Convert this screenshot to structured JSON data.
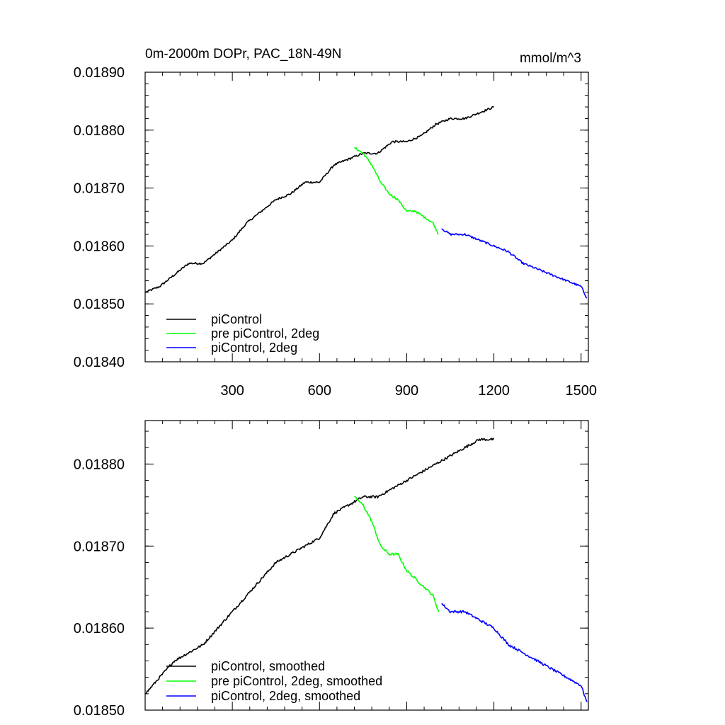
{
  "chart_data": [
    {
      "type": "line",
      "title": "0m-2000m DOPr, PAC_18N-49N",
      "units": "mmol/m^3",
      "xlabel": "",
      "ylabel": "",
      "xlim": [
        0,
        1525
      ],
      "ylim": [
        0.0184,
        0.0189
      ],
      "xticks": [
        300,
        600,
        900,
        1200,
        1500
      ],
      "xtick_labels": [
        "300",
        "600",
        "900",
        "1200",
        "1500"
      ],
      "yticks": [
        0.0184,
        0.0185,
        0.0186,
        0.0187,
        0.0188,
        0.0189
      ],
      "ytick_labels": [
        "0.01840",
        "0.01850",
        "0.01860",
        "0.01870",
        "0.01880",
        "0.01890"
      ],
      "legend_position": "bottom-left",
      "series": [
        {
          "name": "piControl",
          "color": "#000000",
          "x": [
            1,
            50,
            100,
            150,
            200,
            250,
            300,
            350,
            400,
            450,
            500,
            550,
            600,
            650,
            700,
            750,
            800,
            850,
            900,
            950,
            1000,
            1050,
            1100,
            1150,
            1200
          ],
          "y": [
            0.01852,
            0.01853,
            0.01855,
            0.01857,
            0.01857,
            0.01859,
            0.01861,
            0.01864,
            0.01866,
            0.01868,
            0.01869,
            0.01871,
            0.01871,
            0.01874,
            0.01875,
            0.01876,
            0.01876,
            0.01878,
            0.01878,
            0.01879,
            0.01881,
            0.01882,
            0.01882,
            0.01883,
            0.01884
          ]
        },
        {
          "name": "pre piControl, 2deg",
          "color": "#00ff00",
          "x": [
            720,
            750,
            780,
            810,
            840,
            870,
            900,
            930,
            960,
            990,
            1010
          ],
          "y": [
            0.01877,
            0.01876,
            0.01874,
            0.01871,
            0.01869,
            0.01868,
            0.01866,
            0.01866,
            0.01865,
            0.01864,
            0.01862
          ]
        },
        {
          "name": "piControl, 2deg",
          "color": "#0000ff",
          "x": [
            1020,
            1050,
            1100,
            1150,
            1200,
            1250,
            1300,
            1350,
            1400,
            1450,
            1500,
            1520
          ],
          "y": [
            0.01863,
            0.01862,
            0.01862,
            0.01861,
            0.0186,
            0.01859,
            0.01857,
            0.01856,
            0.01855,
            0.01854,
            0.01853,
            0.01851
          ]
        }
      ]
    },
    {
      "type": "line",
      "title": "",
      "xlabel": "",
      "ylabel": "",
      "xlim": [
        0,
        1525
      ],
      "ylim": [
        0.0185,
        0.018853
      ],
      "xticks": [
        300,
        600,
        900,
        1200,
        1500
      ],
      "xtick_labels": [],
      "yticks": [
        0.0185,
        0.0186,
        0.0187,
        0.0188
      ],
      "ytick_labels": [
        "0.01850",
        "0.01860",
        "0.01870",
        "0.01880"
      ],
      "legend_position": "bottom-left",
      "series": [
        {
          "name": "piControl, smoothed",
          "color": "#000000",
          "x": [
            1,
            50,
            100,
            150,
            200,
            250,
            300,
            350,
            400,
            450,
            500,
            550,
            600,
            650,
            700,
            750,
            800,
            850,
            900,
            950,
            1000,
            1050,
            1100,
            1150,
            1200
          ],
          "y": [
            0.01852,
            0.01854,
            0.01856,
            0.01857,
            0.01858,
            0.0186,
            0.01862,
            0.01864,
            0.01866,
            0.01868,
            0.01869,
            0.0187,
            0.01871,
            0.01874,
            0.01875,
            0.01876,
            0.01876,
            0.01877,
            0.01878,
            0.01879,
            0.0188,
            0.01881,
            0.01882,
            0.01883,
            0.01883
          ]
        },
        {
          "name": "pre piControl, 2deg, smoothed",
          "color": "#00ff00",
          "x": [
            720,
            750,
            780,
            810,
            840,
            870,
            900,
            930,
            960,
            990,
            1010
          ],
          "y": [
            0.01876,
            0.01875,
            0.01873,
            0.0187,
            0.01869,
            0.01869,
            0.01867,
            0.01866,
            0.01865,
            0.01864,
            0.01862
          ]
        },
        {
          "name": "piControl, 2deg, smoothed",
          "color": "#0000ff",
          "x": [
            1020,
            1050,
            1100,
            1150,
            1200,
            1250,
            1300,
            1350,
            1400,
            1450,
            1500,
            1520
          ],
          "y": [
            0.01863,
            0.01862,
            0.01862,
            0.01861,
            0.0186,
            0.01858,
            0.01857,
            0.01856,
            0.01855,
            0.01854,
            0.01853,
            0.01851
          ]
        }
      ]
    }
  ]
}
